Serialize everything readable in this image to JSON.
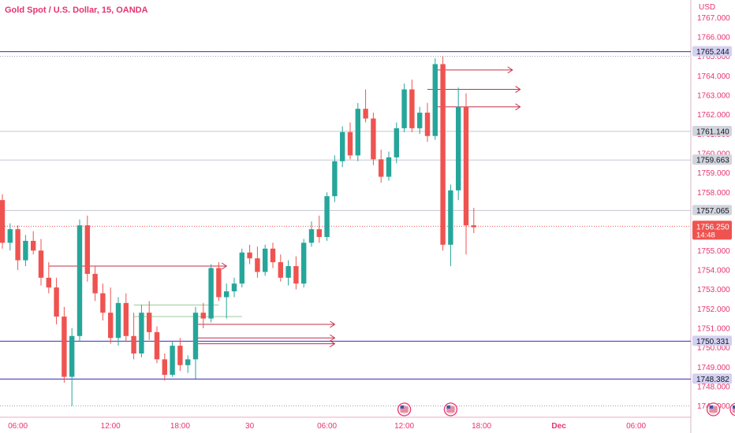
{
  "chart_data": {
    "type": "candlestick",
    "title": "Gold Spot / U.S. Dollar, 15, OANDA",
    "currency": "USD",
    "ylim": [
      1746.7,
      1767.7
    ],
    "y_ticks": [
      "1767.000",
      "1766.000",
      "1765.000",
      "1764.000",
      "1763.000",
      "1762.000",
      "1761.000",
      "1760.000",
      "1759.000",
      "1758.000",
      "1757.000",
      "1756.000",
      "1755.000",
      "1754.000",
      "1753.000",
      "1752.000",
      "1751.000",
      "1750.000",
      "1749.000",
      "1748.000",
      "1747.000"
    ],
    "x_ticks": [
      "06:00",
      "12:00",
      "18:00",
      "30",
      "06:00",
      "12:00",
      "18:00",
      "Dec",
      "06:00"
    ],
    "x_tick_bars": [
      2,
      14,
      23,
      32,
      42,
      52,
      62,
      72,
      82
    ],
    "bar_count": 96,
    "candles": [
      [
        1757.6,
        1757.9,
        1755.1,
        1755.4
      ],
      [
        1755.4,
        1756.4,
        1755.0,
        1756.1
      ],
      [
        1756.1,
        1756.3,
        1754.0,
        1754.5
      ],
      [
        1754.5,
        1755.8,
        1754.2,
        1755.5
      ],
      [
        1755.5,
        1756.0,
        1754.8,
        1755.0
      ],
      [
        1755.0,
        1755.6,
        1753.2,
        1753.6
      ],
      [
        1753.6,
        1754.4,
        1752.8,
        1753.1
      ],
      [
        1753.1,
        1753.6,
        1751.2,
        1751.6
      ],
      [
        1751.6,
        1752.1,
        1748.2,
        1748.5
      ],
      [
        1748.5,
        1751.0,
        1747.0,
        1750.6
      ],
      [
        1750.6,
        1756.6,
        1750.3,
        1756.3
      ],
      [
        1756.3,
        1756.8,
        1753.4,
        1753.8
      ],
      [
        1753.8,
        1754.2,
        1752.4,
        1752.8
      ],
      [
        1752.8,
        1753.3,
        1751.4,
        1751.8
      ],
      [
        1751.8,
        1753.1,
        1750.2,
        1750.5
      ],
      [
        1750.5,
        1752.6,
        1750.1,
        1752.3
      ],
      [
        1752.3,
        1752.8,
        1750.3,
        1750.6
      ],
      [
        1750.6,
        1751.8,
        1749.4,
        1749.7
      ],
      [
        1749.7,
        1752.2,
        1749.5,
        1751.8
      ],
      [
        1751.8,
        1752.4,
        1750.4,
        1750.8
      ],
      [
        1750.8,
        1751.1,
        1749.2,
        1749.4
      ],
      [
        1749.4,
        1749.7,
        1748.3,
        1748.6
      ],
      [
        1748.6,
        1750.3,
        1748.5,
        1750.1
      ],
      [
        1750.1,
        1750.5,
        1748.8,
        1749.1
      ],
      [
        1749.1,
        1749.6,
        1748.7,
        1749.4
      ],
      [
        1749.4,
        1752.1,
        1748.4,
        1751.8
      ],
      [
        1751.8,
        1752.3,
        1751.0,
        1751.5
      ],
      [
        1751.5,
        1754.3,
        1751.3,
        1754.1
      ],
      [
        1754.1,
        1754.4,
        1752.4,
        1752.6
      ],
      [
        1752.6,
        1753.3,
        1751.5,
        1752.9
      ],
      [
        1752.9,
        1753.6,
        1752.6,
        1753.3
      ],
      [
        1753.3,
        1755.1,
        1753.1,
        1754.9
      ],
      [
        1754.9,
        1755.3,
        1754.3,
        1754.6
      ],
      [
        1754.6,
        1755.2,
        1753.6,
        1753.9
      ],
      [
        1753.9,
        1755.3,
        1753.7,
        1755.1
      ],
      [
        1755.1,
        1755.4,
        1754.1,
        1754.4
      ],
      [
        1754.4,
        1754.8,
        1753.4,
        1753.6
      ],
      [
        1753.6,
        1754.5,
        1753.2,
        1754.2
      ],
      [
        1754.2,
        1754.7,
        1753.0,
        1753.3
      ],
      [
        1753.3,
        1755.6,
        1753.1,
        1755.4
      ],
      [
        1755.4,
        1756.5,
        1755.2,
        1756.1
      ],
      [
        1756.1,
        1756.8,
        1755.4,
        1755.7
      ],
      [
        1755.7,
        1758.0,
        1755.5,
        1757.8
      ],
      [
        1757.8,
        1759.9,
        1757.5,
        1759.6
      ],
      [
        1759.6,
        1761.4,
        1759.3,
        1761.1
      ],
      [
        1761.1,
        1761.6,
        1759.7,
        1759.9
      ],
      [
        1759.9,
        1762.6,
        1759.6,
        1762.3
      ],
      [
        1762.3,
        1763.3,
        1761.6,
        1761.8
      ],
      [
        1761.8,
        1762.1,
        1759.4,
        1759.7
      ],
      [
        1759.7,
        1760.2,
        1758.5,
        1758.8
      ],
      [
        1758.8,
        1760.1,
        1758.6,
        1759.8
      ],
      [
        1759.8,
        1761.6,
        1759.5,
        1761.3
      ],
      [
        1761.3,
        1763.6,
        1761.1,
        1763.3
      ],
      [
        1763.3,
        1763.8,
        1761.1,
        1761.3
      ],
      [
        1761.3,
        1762.4,
        1761.0,
        1762.1
      ],
      [
        1762.1,
        1762.6,
        1760.6,
        1760.9
      ],
      [
        1760.9,
        1764.9,
        1760.7,
        1764.6
      ],
      [
        1764.6,
        1765.0,
        1755.0,
        1755.3
      ],
      [
        1755.3,
        1758.4,
        1754.2,
        1758.1
      ],
      [
        1758.1,
        1763.4,
        1757.6,
        1762.4
      ],
      [
        1762.4,
        1763.1,
        1754.8,
        1756.3
      ],
      [
        1756.3,
        1757.2,
        1755.9,
        1756.2
      ]
    ],
    "horizontal_levels": [
      {
        "label": "1765.244",
        "value": 1765.244,
        "color": "#3d2cb8"
      },
      {
        "label": "1761.140",
        "value": 1761.14,
        "color": "#c3c7d1"
      },
      {
        "label": "1759.663",
        "value": 1759.663,
        "color": "#c3c7d1"
      },
      {
        "label": "1757.065",
        "value": 1757.065,
        "color": "#c3c7d1"
      },
      {
        "label": "1750.331",
        "value": 1750.331,
        "color": "#3d2cb8"
      },
      {
        "label": "1748.382",
        "value": 1748.382,
        "color": "#3d2cb8"
      }
    ],
    "dotted_levels": [
      1765.0,
      1747.0
    ],
    "current_price": {
      "label": "1756.250",
      "countdown": "14:48",
      "value": 1756.25
    },
    "ray_lines": [
      {
        "value": 1764.3,
        "from_bar": 56,
        "to_bar": 66,
        "color": "#c62f49"
      },
      {
        "value": 1763.3,
        "from_bar": 55,
        "to_bar": 67,
        "color": "#c62f49"
      },
      {
        "value": 1762.4,
        "from_bar": 56,
        "to_bar": 67,
        "color": "#c62f49"
      },
      {
        "value": 1754.2,
        "from_bar": 6,
        "to_bar": 29,
        "color": "#c62f49"
      },
      {
        "value": 1751.2,
        "from_bar": 25,
        "to_bar": 43,
        "color": "#c62f49"
      },
      {
        "value": 1750.5,
        "from_bar": 25,
        "to_bar": 43,
        "color": "#c62f49"
      },
      {
        "value": 1750.2,
        "from_bar": 25,
        "to_bar": 43,
        "color": "#c62f49"
      }
    ],
    "green_lines": [
      {
        "value": 1752.2,
        "from_bar": 17,
        "to_bar": 28
      },
      {
        "value": 1751.6,
        "from_bar": 17,
        "to_bar": 31
      }
    ],
    "event_icons_bars": [
      52,
      58,
      92,
      95
    ],
    "colors": {
      "up": "#26a69a",
      "down": "#ef5350",
      "title": "#e8336f",
      "axis_text": "#e8336f",
      "current_price_bg": "#ef5350",
      "level_label_bg": "#d1d4dc",
      "level_label_strong_bg": "#d4d0f0"
    }
  }
}
